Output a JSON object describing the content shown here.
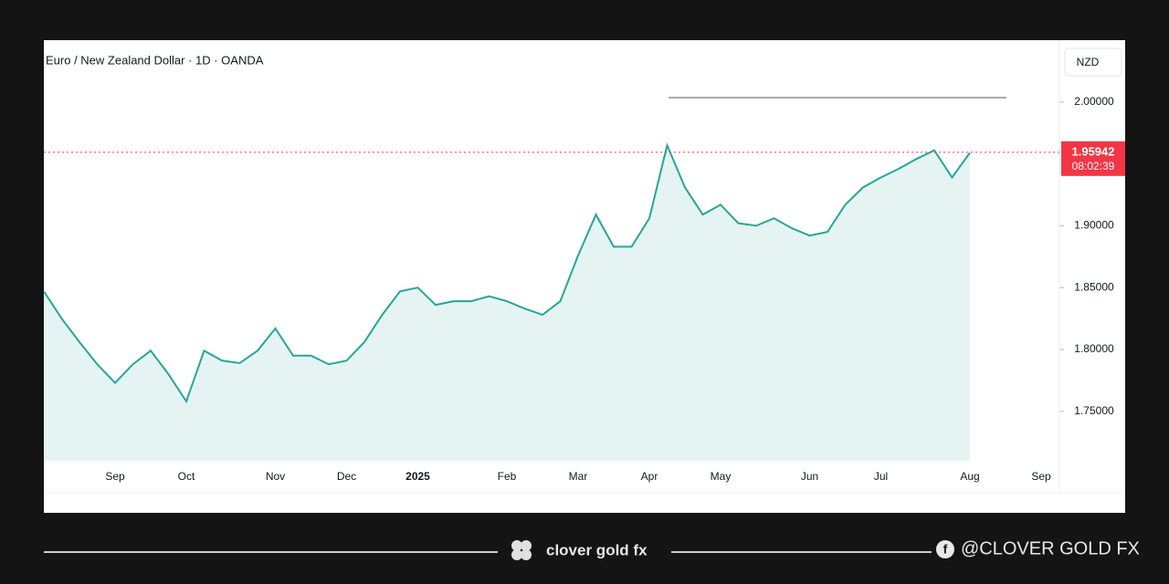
{
  "chart_data": {
    "type": "line",
    "title": "Euro / New Zealand Dollar · 1D · OANDA",
    "currency": "NZD",
    "categories": [
      null,
      null,
      null,
      null,
      "Sep",
      null,
      null,
      null,
      "Oct",
      null,
      null,
      null,
      null,
      "Nov",
      null,
      null,
      null,
      "Dec",
      null,
      null,
      null,
      "2025",
      null,
      null,
      null,
      null,
      "Feb",
      null,
      null,
      null,
      "Mar",
      null,
      null,
      null,
      "Apr",
      null,
      null,
      null,
      "May",
      null,
      null,
      null,
      null,
      "Jun",
      null,
      null,
      null,
      "Jul",
      null,
      null,
      null,
      null,
      "Aug",
      null,
      null,
      null,
      "Sep"
    ],
    "series": [
      {
        "name": "EURNZD",
        "color": "#26a69a",
        "values": [
          1.847,
          1.825,
          1.806,
          1.788,
          1.773,
          1.788,
          1.799,
          1.78,
          1.758,
          1.799,
          1.791,
          1.789,
          1.799,
          1.817,
          1.795,
          1.795,
          1.788,
          1.791,
          1.806,
          1.828,
          1.847,
          1.85,
          1.836,
          1.839,
          1.839,
          1.843,
          1.839,
          1.833,
          1.828,
          1.839,
          1.876,
          1.909,
          1.883,
          1.883,
          1.906,
          1.965,
          1.931,
          1.909,
          1.917,
          1.902,
          1.9,
          1.906,
          1.898,
          1.892,
          1.895,
          1.917,
          1.931,
          1.939,
          1.946,
          1.954,
          1.961,
          1.939,
          1.959,
          null,
          null,
          null,
          null
        ]
      }
    ],
    "ylim": [
      1.71,
      2.05
    ],
    "yticks": [
      {
        "value": 1.75,
        "label": "1.75000"
      },
      {
        "value": 1.8,
        "label": "1.80000"
      },
      {
        "value": 1.85,
        "label": "1.85000"
      },
      {
        "value": 1.9,
        "label": "1.90000"
      },
      {
        "value": 2.0,
        "label": "2.00000"
      }
    ],
    "last_price": 1.95942,
    "countdown": "08:02:39",
    "grid": false
  },
  "footer": {
    "brand": "clover gold fx",
    "handle": "@CLOVER GOLD FX"
  }
}
